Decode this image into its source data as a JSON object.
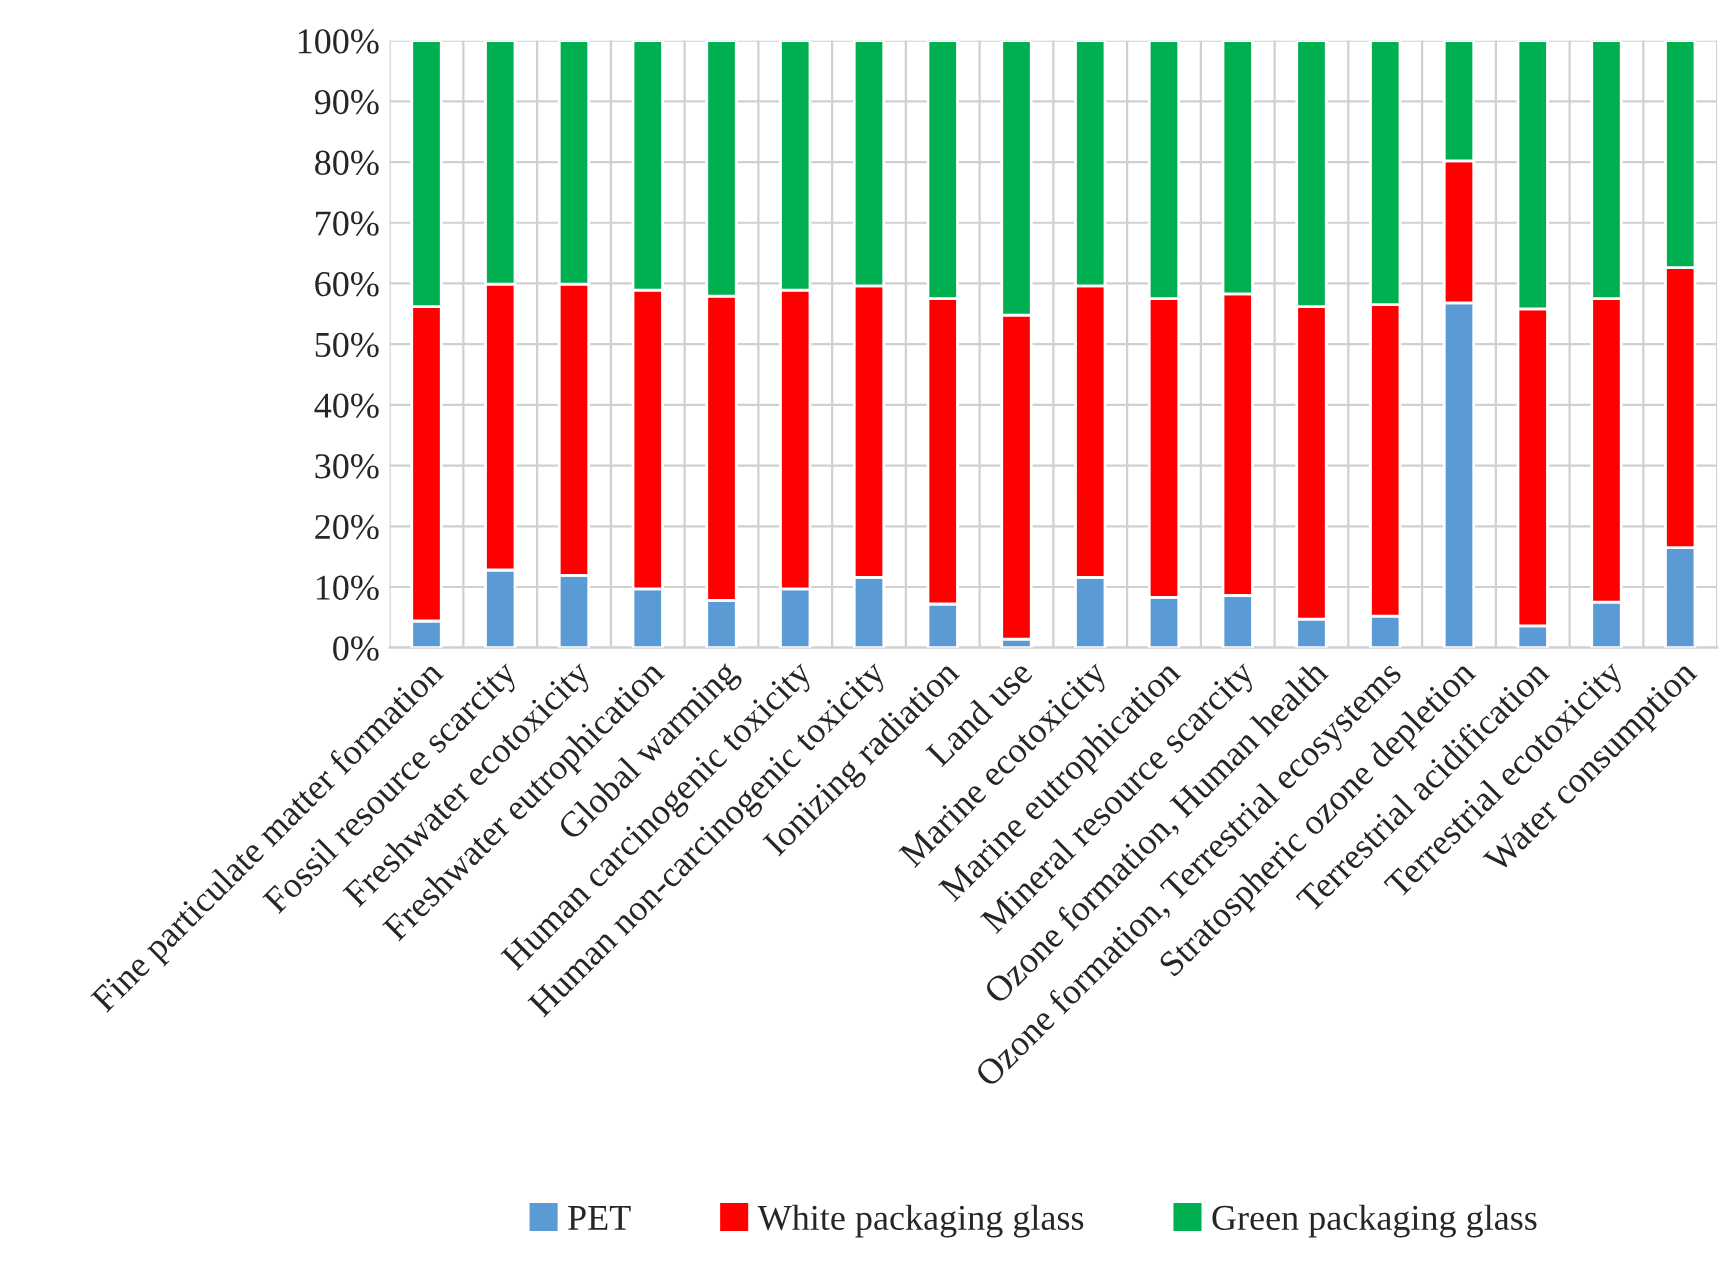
{
  "chart_data": {
    "type": "bar",
    "stacked": true,
    "categories": [
      "Fine particulate matter formation",
      "Fossil resource scarcity",
      "Freshwater ecotoxicity",
      "Freshwater eutrophication",
      "Global warming",
      "Human carcinogenic toxicity",
      "Human non-carcinogenic toxicity",
      "Ionizing radiation",
      "Land use",
      "Marine ecotoxicity",
      "Marine eutrophication",
      "Mineral resource scarcity",
      "Ozone formation, Human health",
      "Ozone formation, Terrestrial ecosystems",
      "Stratospheric ozone depletion",
      "Terrestrial acidification",
      "Terrestrial ecotoxicity",
      "Water consumption"
    ],
    "series": [
      {
        "name": "PET",
        "color": "#5b9bd5",
        "values": [
          4.4,
          12.8,
          11.9,
          9.7,
          7.8,
          9.7,
          11.6,
          7.2,
          1.4,
          11.6,
          8.3,
          8.6,
          4.7,
          5.2,
          56.8,
          3.6,
          7.5,
          16.5
        ]
      },
      {
        "name": "White packaging glass",
        "color": "#ff0000",
        "values": [
          51.8,
          47.1,
          48.0,
          49.2,
          50.1,
          49.2,
          48.0,
          50.3,
          53.4,
          48.0,
          49.2,
          49.7,
          51.5,
          51.3,
          23.4,
          52.2,
          50.0,
          46.1
        ]
      },
      {
        "name": "Green packaging glass",
        "color": "#00b050",
        "values": [
          43.8,
          40.1,
          40.1,
          41.1,
          42.1,
          41.1,
          40.4,
          42.5,
          45.2,
          40.4,
          42.5,
          41.7,
          43.8,
          43.5,
          19.8,
          44.2,
          42.5,
          37.4
        ]
      }
    ],
    "ylim": [
      0,
      100
    ],
    "yticks": [
      {
        "value": 0,
        "label": "0%"
      },
      {
        "value": 10,
        "label": "10%"
      },
      {
        "value": 20,
        "label": "20%"
      },
      {
        "value": 30,
        "label": "30%"
      },
      {
        "value": 40,
        "label": "40%"
      },
      {
        "value": 50,
        "label": "50%"
      },
      {
        "value": 60,
        "label": "60%"
      },
      {
        "value": 70,
        "label": "70%"
      },
      {
        "value": 80,
        "label": "80%"
      },
      {
        "value": 90,
        "label": "90%"
      },
      {
        "value": 100,
        "label": "100%"
      }
    ],
    "grid": true,
    "legend": "bottom"
  }
}
